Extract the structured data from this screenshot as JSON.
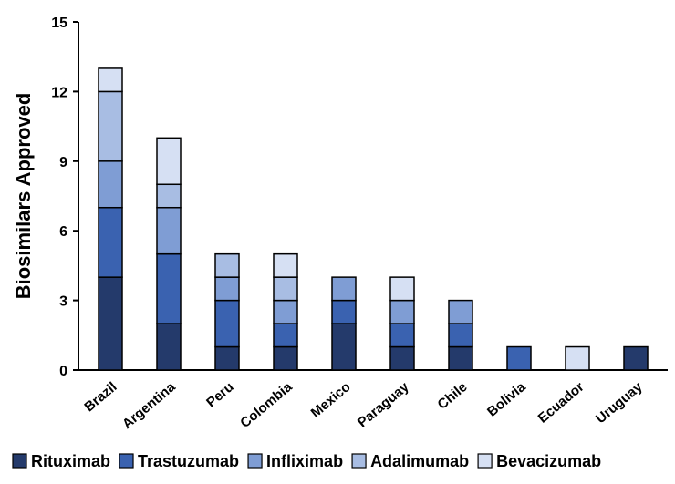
{
  "chart_data": {
    "type": "bar",
    "stacked": true,
    "title": "",
    "xlabel": "",
    "ylabel": "Biosimilars Approved",
    "ylim": [
      0,
      15
    ],
    "yticks": [
      0,
      3,
      6,
      9,
      12,
      15
    ],
    "grid": false,
    "legend_position": "bottom",
    "categories": [
      "Brazil",
      "Argentina",
      "Peru",
      "Colombia",
      "Mexico",
      "Paraguay",
      "Chile",
      "Bolivia",
      "Ecuador",
      "Uruguay"
    ],
    "series": [
      {
        "name": "Rituximab",
        "color": "#243a6b",
        "values": [
          4,
          2,
          1,
          1,
          2,
          1,
          1,
          0,
          0,
          1
        ]
      },
      {
        "name": "Trastuzumab",
        "color": "#3a62b0",
        "values": [
          3,
          3,
          2,
          1,
          1,
          1,
          1,
          1,
          0,
          0
        ]
      },
      {
        "name": "Infliximab",
        "color": "#7f9dd4",
        "values": [
          2,
          2,
          1,
          1,
          1,
          1,
          1,
          0,
          0,
          0
        ]
      },
      {
        "name": "Adalimumab",
        "color": "#a8bde3",
        "values": [
          3,
          1,
          1,
          1,
          0,
          0,
          0,
          0,
          0,
          0
        ]
      },
      {
        "name": "Bevacizumab",
        "color": "#d6e0f3",
        "values": [
          1,
          2,
          0,
          1,
          0,
          1,
          0,
          0,
          1,
          0
        ]
      }
    ]
  }
}
